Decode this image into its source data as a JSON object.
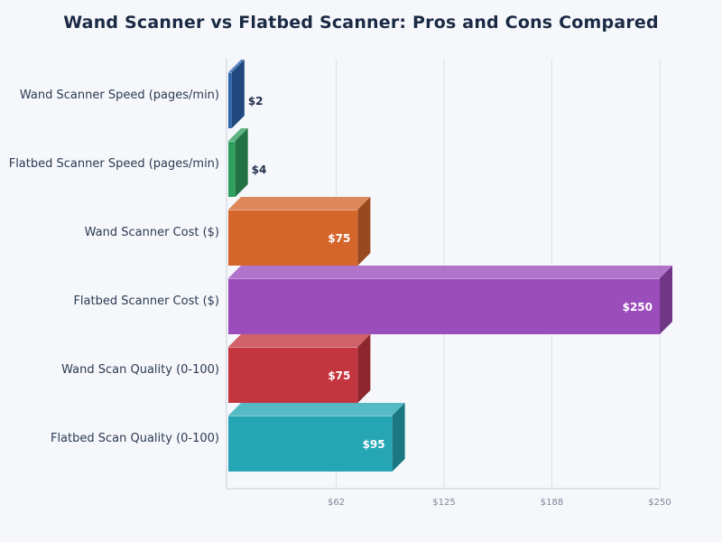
{
  "chart_data": {
    "type": "bar",
    "orientation": "horizontal",
    "title": "Wand Scanner vs Flatbed Scanner: Pros and Cons Compared",
    "xlabel": "",
    "ylabel": "",
    "categories": [
      "Wand Scanner Speed (pages/min)",
      "Flatbed Scanner Speed (pages/min)",
      "Wand Scanner Cost ($)",
      "Flatbed Scanner Cost ($)",
      "Wand Scan Quality (0-100)",
      "Flatbed Scan Quality (0-100)"
    ],
    "values": [
      2,
      4,
      75,
      250,
      75,
      95
    ],
    "value_labels": [
      "$2",
      "$4",
      "$75",
      "$250",
      "$75",
      "$95"
    ],
    "colors": [
      "#2e66ad",
      "#2f9e5f",
      "#d4662c",
      "#9b4dbc",
      "#c4363f",
      "#26a6b5"
    ],
    "xlim": [
      0,
      250
    ],
    "xticks": [
      62.5,
      125,
      187.5,
      250
    ],
    "xtick_labels": [
      "$62",
      "$125",
      "$188",
      "$250"
    ],
    "grid": true,
    "legend": "none"
  }
}
